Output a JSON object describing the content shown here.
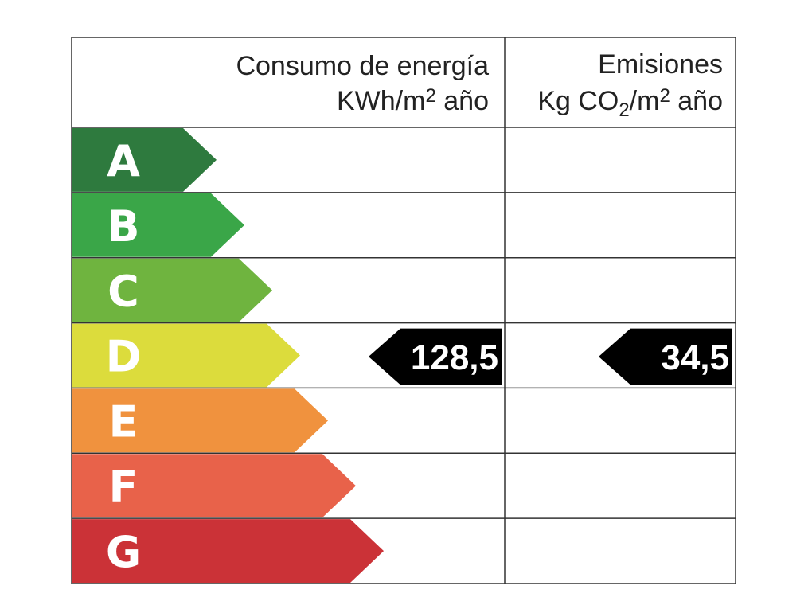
{
  "header": {
    "consumption": {
      "title": "Consumo de energía",
      "unit": [
        "KWh/m",
        "2",
        " año"
      ]
    },
    "emissions": {
      "title": "Emisiones",
      "unit": [
        "Kg CO",
        "2",
        "/m",
        "2",
        " año"
      ]
    }
  },
  "rows": [
    {
      "letter": "A",
      "color": "#2e7a3e"
    },
    {
      "letter": "B",
      "color": "#3aa648"
    },
    {
      "letter": "C",
      "color": "#6fb43f"
    },
    {
      "letter": "D",
      "color": "#dcdc3c",
      "consumption": "128,5",
      "emissions": "34,5"
    },
    {
      "letter": "E",
      "color": "#f0923e"
    },
    {
      "letter": "F",
      "color": "#e8624a"
    },
    {
      "letter": "G",
      "color": "#cb3237"
    }
  ]
}
